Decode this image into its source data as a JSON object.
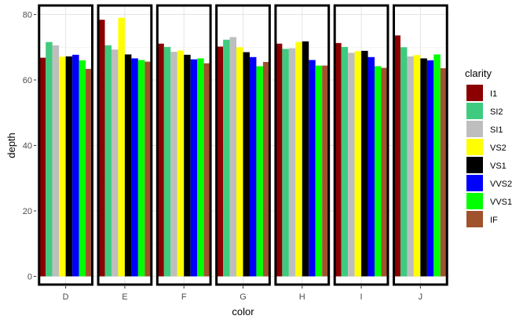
{
  "chart_data": {
    "type": "bar",
    "title": "",
    "xlabel": "color",
    "ylabel": "depth",
    "categories": [
      "D",
      "E",
      "F",
      "G",
      "H",
      "I",
      "J"
    ],
    "ylim": [
      -3,
      83
    ],
    "yticks": [
      0,
      20,
      40,
      60,
      80
    ],
    "grid": true,
    "legend_position": "right",
    "legend_title": "clarity",
    "series": [
      {
        "name": "I1",
        "color": "#8B0000",
        "values": [
          66.8,
          78.4,
          71.1,
          70.2,
          71.1,
          71.3,
          73.6
        ]
      },
      {
        "name": "SI2",
        "color": "#3FCB7F",
        "values": [
          71.6,
          70.6,
          70.1,
          72.3,
          69.5,
          70.1,
          70.0
        ]
      },
      {
        "name": "SI1",
        "color": "#BEBEBE",
        "values": [
          70.6,
          69.3,
          68.6,
          73.1,
          69.7,
          68.3,
          67.2
        ]
      },
      {
        "name": "VS2",
        "color": "#FFFF00",
        "values": [
          67.1,
          79.0,
          69.0,
          70.0,
          71.6,
          68.8,
          67.6
        ]
      },
      {
        "name": "VS1",
        "color": "#000000",
        "values": [
          67.2,
          67.8,
          67.7,
          68.5,
          71.8,
          68.9,
          66.6
        ]
      },
      {
        "name": "VVS2",
        "color": "#0000FF",
        "values": [
          67.7,
          66.6,
          66.3,
          67.0,
          66.1,
          67.0,
          66.0
        ]
      },
      {
        "name": "VVS1",
        "color": "#00FF00",
        "values": [
          66.0,
          66.1,
          66.6,
          64.2,
          64.4,
          64.2,
          67.8
        ]
      },
      {
        "name": "IF",
        "color": "#A0522D",
        "values": [
          63.4,
          65.6,
          65.1,
          65.5,
          64.4,
          63.7,
          63.6
        ]
      }
    ]
  }
}
